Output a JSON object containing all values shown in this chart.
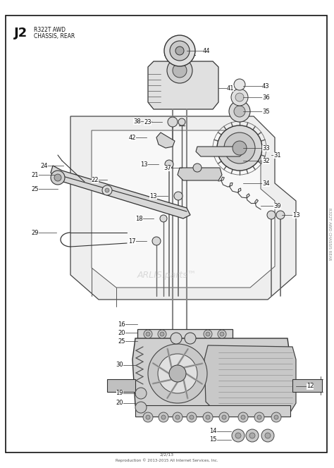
{
  "bg_color": "#ffffff",
  "page_bg": "#f7f7f7",
  "border_color": "#111111",
  "title_label": "J2",
  "subtitle_line1": "R322T AWD",
  "subtitle_line2": "CHASSIS, REAR",
  "footer_line1": "2/2/13",
  "footer_line2": "Reproduction © 2013-2015 All Internet Services, Inc.",
  "watermark": "ARLIS.parts™",
  "line_color": "#222222",
  "gray_fill": "#d8d8d8",
  "light_fill": "#eeeeee",
  "mid_fill": "#cccccc"
}
